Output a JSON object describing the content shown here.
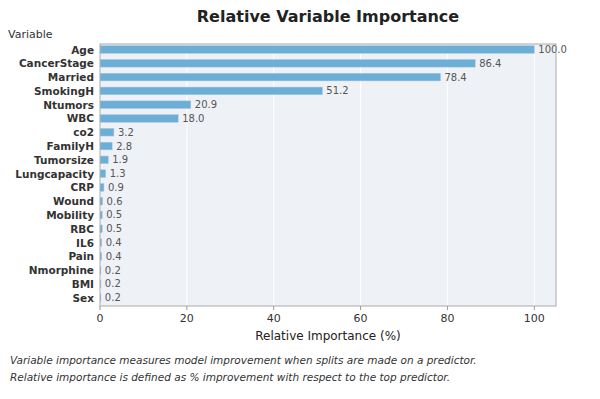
{
  "chart_data": {
    "type": "bar",
    "orientation": "horizontal",
    "title": "Relative Variable Importance",
    "xlabel": "Relative Importance (%)",
    "ylabel": "Variable",
    "categories": [
      "Sex",
      "BMI",
      "Nmorphine",
      "Pain",
      "IL6",
      "RBC",
      "Mobility",
      "Wound",
      "CRP",
      "Lungcapacity",
      "Tumorsize",
      "FamilyH",
      "co2",
      "WBC",
      "Ntumors",
      "SmokingH",
      "Married",
      "CancerStage",
      "Age"
    ],
    "values": [
      0.2,
      0.2,
      0.2,
      0.4,
      0.4,
      0.5,
      0.5,
      0.6,
      0.9,
      1.3,
      1.9,
      2.8,
      3.2,
      18.0,
      20.9,
      51.2,
      78.4,
      86.4,
      100.0
    ],
    "value_labels": [
      "0.2",
      "0.2",
      "0.2",
      "0.4",
      "0.4",
      "0.5",
      "0.5",
      "0.6",
      "0.9",
      "1.3",
      "1.9",
      "2.8",
      "3.2",
      "18.0",
      "20.9",
      "51.2",
      "78.4",
      "86.4",
      "100.0"
    ],
    "data_labels": true,
    "color": "#6baed6",
    "xlim": [
      0,
      105
    ],
    "xticks": [
      0,
      20,
      40,
      60,
      80,
      100
    ],
    "grid": true,
    "annotations": [
      "Variable importance measures model improvement when splits are made on a predictor.",
      "Relative importance is defined as % improvement with respect to the top predictor."
    ]
  }
}
